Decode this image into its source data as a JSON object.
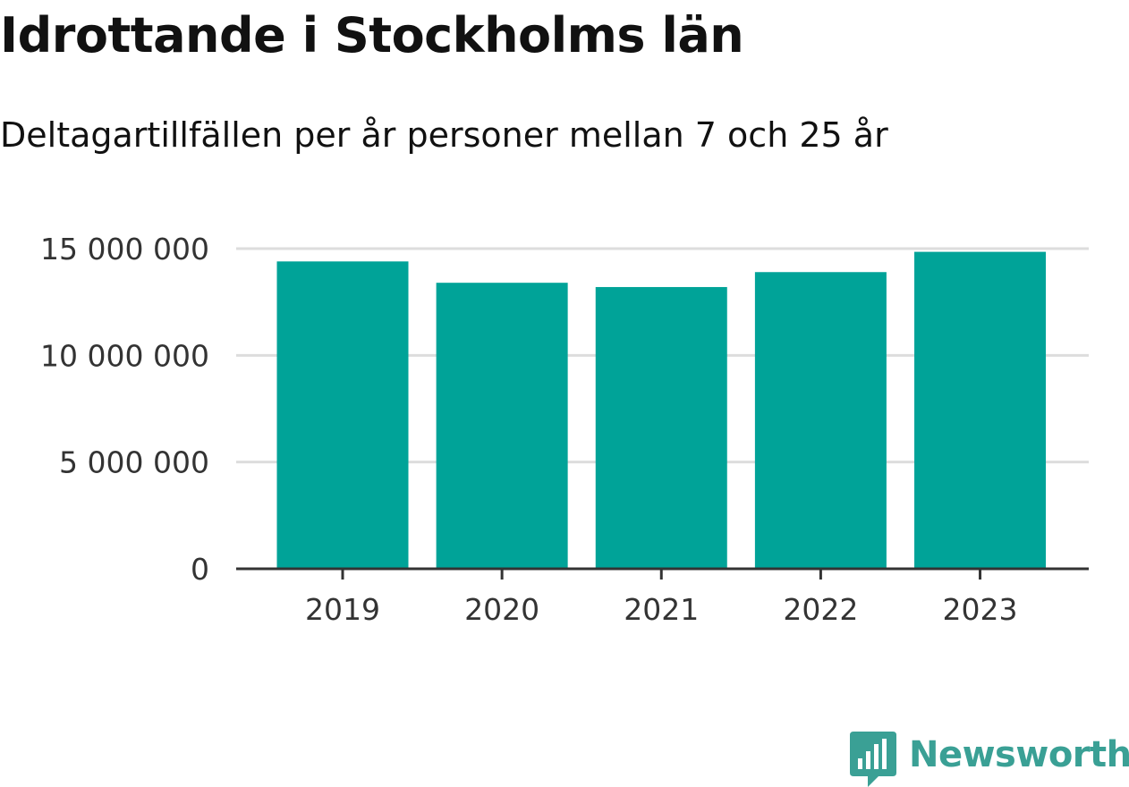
{
  "chart_data": {
    "type": "bar",
    "title": "Idrottande i Stockholms län",
    "subtitle": "Deltagartillfällen per år personer mellan 7 och 25 år",
    "categories": [
      "2019",
      "2020",
      "2021",
      "2022",
      "2023"
    ],
    "values": [
      14400000,
      13400000,
      13200000,
      13900000,
      14850000
    ],
    "ylim": [
      0,
      15000000
    ],
    "yticks": [
      0,
      5000000,
      10000000,
      15000000
    ],
    "ytick_labels": [
      "0",
      "5 000 000",
      "10 000 000",
      "15 000 000"
    ],
    "xlabel": "",
    "ylabel": "",
    "grid": true,
    "bar_color": "#00a398"
  },
  "brand": {
    "name": "Newsworthy",
    "color": "#3aa095",
    "icon": "bar-chart-speech-bubble-icon"
  }
}
